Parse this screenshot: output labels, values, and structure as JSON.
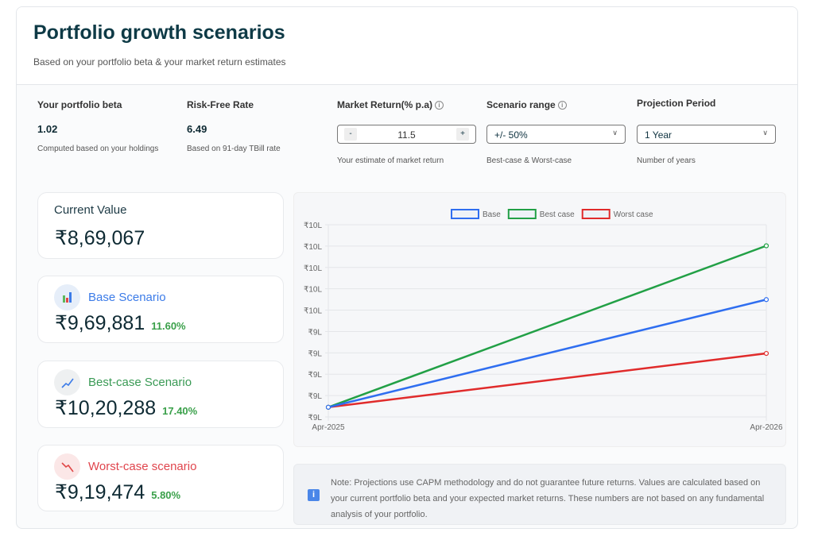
{
  "header": {
    "title": "Portfolio growth scenarios",
    "subtitle": "Based on your portfolio beta & your market return estimates"
  },
  "params": {
    "beta": {
      "label": "Your portfolio beta",
      "value": "1.02",
      "hint": "Computed based on your holdings"
    },
    "risk_free": {
      "label": "Risk-Free Rate",
      "value": "6.49",
      "hint": "Based on 91-day TBill rate"
    },
    "market_return": {
      "label": "Market Return(% p.a)",
      "value": "11.5",
      "minus": "-",
      "plus": "+",
      "hint": "Your estimate of market return"
    },
    "scenario_range": {
      "label": "Scenario range",
      "value": "+/- 50%",
      "hint": "Best-case & Worst-case"
    },
    "projection": {
      "label": "Projection Period",
      "value": "1 Year",
      "hint": "Number of years"
    },
    "info_glyph": "i"
  },
  "current": {
    "label": "Current Value",
    "value": "₹8,69,067"
  },
  "scenarios": [
    {
      "title": "Base Scenario",
      "value": "₹9,69,881",
      "pct": "11.60%",
      "color": "#3b7be8",
      "icon": "bar-chart-icon"
    },
    {
      "title": "Best-case Scenario",
      "value": "₹10,20,288",
      "pct": "17.40%",
      "color": "#3a9a55",
      "icon": "chart-up-icon"
    },
    {
      "title": "Worst-case scenario",
      "value": "₹9,19,474",
      "pct": "5.80%",
      "color": "#e0454d",
      "icon": "chart-down-icon"
    }
  ],
  "note": {
    "icon": "i",
    "text": "Note: Projections use CAPM methodology and do not guarantee future returns. Values are calculated based on your current portfolio beta and your expected market returns. These numbers are not based on any fundamental analysis of your portfolio."
  },
  "chart_data": {
    "type": "line",
    "x": [
      "Apr-2025",
      "Apr-2026"
    ],
    "series": [
      {
        "name": "Base",
        "values": [
          869067,
          969881
        ],
        "color": "#2f6ef0"
      },
      {
        "name": "Best case",
        "values": [
          869067,
          1020288
        ],
        "color": "#22a046"
      },
      {
        "name": "Worst case",
        "values": [
          869067,
          919474
        ],
        "color": "#e02b2b"
      }
    ],
    "ylim": [
      860000,
      1040000
    ],
    "yticks": [
      860000,
      880000,
      900000,
      920000,
      940000,
      960000,
      980000,
      1000000,
      1020000,
      1040000
    ],
    "ytick_labels": [
      "₹9L",
      "₹9L",
      "₹9L",
      "₹9L",
      "₹9L",
      "₹10L",
      "₹10L",
      "₹10L",
      "₹10L",
      "₹10L"
    ],
    "legend": "top-center",
    "grid": true
  }
}
